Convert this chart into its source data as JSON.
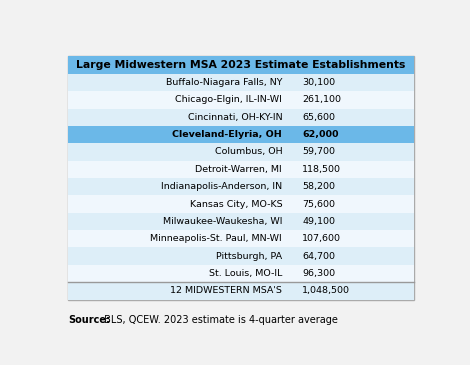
{
  "title": "Large Midwestern MSA 2023 Estimate Establishments",
  "rows": [
    [
      "Buffalo-Niagara Falls, NY",
      "30,100"
    ],
    [
      "Chicago-Elgin, IL-IN-WI",
      "261,100"
    ],
    [
      "Cincinnati, OH-KY-IN",
      "65,600"
    ],
    [
      "Cleveland-Elyria, OH",
      "62,000"
    ],
    [
      "Columbus, OH",
      "59,700"
    ],
    [
      "Detroit-Warren, MI",
      "118,500"
    ],
    [
      "Indianapolis-Anderson, IN",
      "58,200"
    ],
    [
      "Kansas City, MO-KS",
      "75,600"
    ],
    [
      "Milwaukee-Waukesha, WI",
      "49,100"
    ],
    [
      "Minneapolis-St. Paul, MN-WI",
      "107,600"
    ],
    [
      "Pittsburgh, PA",
      "64,700"
    ],
    [
      "St. Louis, MO-IL",
      "96,300"
    ]
  ],
  "total_row": [
    "12 MIDWESTERN MSA'S",
    "1,048,500"
  ],
  "highlight_row_index": 3,
  "highlight_row_bg": "#6bb8e8",
  "header_bg": "#6bb8e8",
  "header_text_color": "#000000",
  "row_bg_light": "#ddeef8",
  "row_bg_white": "#f0f7fd",
  "total_row_bg": "#ddeef8",
  "separator_color": "#999999",
  "source_bold": "Source:",
  "source_text": " BLS, QCEW. 2023 estimate is 4-quarter average",
  "outer_bg": "#ffffff",
  "table_border_color": "#aaaaaa",
  "fig_bg": "#f2f2f2"
}
